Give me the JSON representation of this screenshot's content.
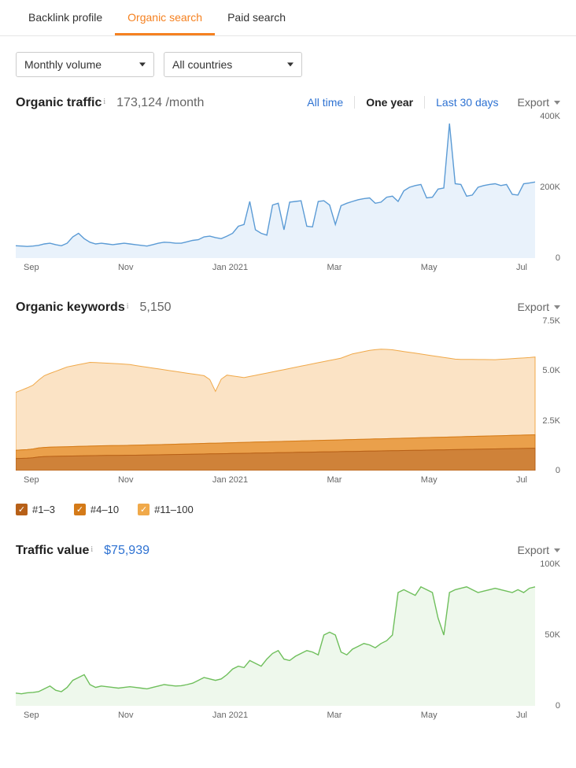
{
  "tabs": [
    {
      "label": "Backlink profile",
      "active": false
    },
    {
      "label": "Organic search",
      "active": true
    },
    {
      "label": "Paid search",
      "active": false
    }
  ],
  "selectors": {
    "volume": "Monthly volume",
    "country": "All countries"
  },
  "range": {
    "all": "All time",
    "year": "One year",
    "month": "Last 30 days",
    "active": "year"
  },
  "export_label": "Export",
  "x_ticks": [
    "Sep",
    "Nov",
    "Jan 2021",
    "Mar",
    "May",
    "Jul"
  ],
  "traffic_panel": {
    "title": "Organic traffic",
    "value": "173,124",
    "unit": "/month",
    "chart": {
      "type": "area-line",
      "stroke": "#5b9bd5",
      "fill": "#e9f2fb",
      "stroke_width": 1.4,
      "ylim": [
        0,
        400000
      ],
      "y_ticks": [
        {
          "v": 0,
          "label": "0"
        },
        {
          "v": 200000,
          "label": "200K"
        },
        {
          "v": 400000,
          "label": "400K"
        }
      ],
      "values": [
        35000,
        34000,
        33000,
        34000,
        36000,
        40000,
        42000,
        38000,
        35000,
        42000,
        60000,
        70000,
        55000,
        45000,
        40000,
        42000,
        40000,
        38000,
        40000,
        42000,
        40000,
        38000,
        36000,
        34000,
        38000,
        42000,
        45000,
        44000,
        42000,
        42000,
        46000,
        50000,
        52000,
        60000,
        62000,
        58000,
        55000,
        62000,
        70000,
        90000,
        95000,
        160000,
        80000,
        70000,
        65000,
        150000,
        155000,
        80000,
        158000,
        160000,
        162000,
        90000,
        88000,
        160000,
        162000,
        150000,
        95000,
        148000,
        155000,
        160000,
        165000,
        168000,
        170000,
        155000,
        158000,
        172000,
        175000,
        160000,
        190000,
        200000,
        205000,
        208000,
        170000,
        172000,
        195000,
        198000,
        380000,
        210000,
        208000,
        175000,
        178000,
        200000,
        205000,
        208000,
        210000,
        205000,
        208000,
        180000,
        178000,
        210000,
        212000,
        215000
      ]
    }
  },
  "keywords_panel": {
    "title": "Organic keywords",
    "value": "5,150",
    "chart": {
      "type": "stacked-area",
      "ylim": [
        0,
        7500
      ],
      "y_ticks": [
        {
          "v": 0,
          "label": "0"
        },
        {
          "v": 2500,
          "label": "2.5K"
        },
        {
          "v": 5000,
          "label": "5.0K"
        },
        {
          "v": 7500,
          "label": "7.5K"
        }
      ],
      "series": [
        {
          "label": "#1–3",
          "stroke": "#b76018",
          "fill": "#cf8239",
          "values": [
            600,
            610,
            620,
            640,
            680,
            700,
            710,
            715,
            720,
            725,
            730,
            735,
            740,
            745,
            750,
            755,
            758,
            760,
            762,
            765,
            768,
            770,
            775,
            780,
            785,
            790,
            795,
            800,
            805,
            810,
            815,
            820,
            825,
            830,
            835,
            840,
            845,
            850,
            855,
            860,
            865,
            870,
            875,
            880,
            885,
            890,
            895,
            900,
            905,
            910,
            915,
            920,
            925,
            930,
            935,
            940,
            945,
            950,
            955,
            960,
            965,
            970,
            975,
            980,
            985,
            990,
            995,
            1000,
            1005,
            1010,
            1015,
            1020,
            1025,
            1030,
            1035,
            1040,
            1045,
            1050,
            1055,
            1060,
            1065,
            1070,
            1075,
            1080,
            1085,
            1090,
            1095,
            1100,
            1105,
            1110,
            1115,
            1120
          ]
        },
        {
          "label": "#4–10",
          "stroke": "#d47a18",
          "fill": "#eaa04b",
          "values": [
            420,
            425,
            430,
            440,
            455,
            460,
            465,
            468,
            470,
            472,
            475,
            478,
            480,
            483,
            485,
            488,
            490,
            492,
            494,
            496,
            498,
            500,
            503,
            505,
            508,
            510,
            512,
            515,
            517,
            520,
            523,
            525,
            527,
            530,
            533,
            535,
            537,
            540,
            543,
            545,
            547,
            550,
            553,
            555,
            557,
            560,
            563,
            565,
            567,
            570,
            573,
            575,
            577,
            580,
            583,
            585,
            587,
            590,
            593,
            595,
            597,
            600,
            603,
            605,
            607,
            610,
            613,
            615,
            617,
            620,
            623,
            625,
            627,
            630,
            633,
            635,
            637,
            640,
            643,
            645,
            647,
            650,
            653,
            655,
            657,
            660,
            663,
            665,
            667,
            670,
            673,
            675
          ]
        },
        {
          "label": "#11–100",
          "stroke": "#f0a94a",
          "fill": "#fbe3c5",
          "values": [
            2900,
            3000,
            3100,
            3200,
            3400,
            3600,
            3700,
            3800,
            3900,
            4000,
            4050,
            4100,
            4150,
            4200,
            4180,
            4160,
            4140,
            4120,
            4100,
            4080,
            4050,
            4000,
            3950,
            3900,
            3850,
            3800,
            3750,
            3700,
            3650,
            3600,
            3550,
            3500,
            3450,
            3400,
            3200,
            2600,
            3200,
            3400,
            3350,
            3300,
            3250,
            3300,
            3350,
            3400,
            3450,
            3500,
            3550,
            3600,
            3650,
            3700,
            3750,
            3800,
            3850,
            3900,
            3950,
            4000,
            4050,
            4100,
            4200,
            4300,
            4350,
            4400,
            4450,
            4480,
            4500,
            4480,
            4450,
            4400,
            4350,
            4300,
            4250,
            4200,
            4150,
            4100,
            4050,
            4000,
            3950,
            3900,
            3880,
            3870,
            3860,
            3850,
            3840,
            3830,
            3820,
            3830,
            3840,
            3850,
            3860,
            3870,
            3880,
            3900
          ]
        }
      ]
    }
  },
  "value_panel": {
    "title": "Traffic value",
    "value": "$75,939",
    "chart": {
      "type": "area-line",
      "stroke": "#6fbf5c",
      "fill": "#eef8ec",
      "stroke_width": 1.4,
      "ylim": [
        0,
        100000
      ],
      "y_ticks": [
        {
          "v": 0,
          "label": "0"
        },
        {
          "v": 50000,
          "label": "50K"
        },
        {
          "v": 100000,
          "label": "100K"
        }
      ],
      "values": [
        9000,
        8500,
        9200,
        9500,
        10000,
        12000,
        14000,
        11000,
        10000,
        13000,
        18000,
        20000,
        22000,
        15000,
        13000,
        14000,
        13500,
        13000,
        12500,
        13000,
        13500,
        13000,
        12500,
        12000,
        13000,
        14000,
        15000,
        14500,
        14000,
        14200,
        15000,
        16000,
        18000,
        20000,
        19000,
        18000,
        19000,
        22000,
        26000,
        28000,
        27000,
        32000,
        30000,
        28000,
        33000,
        37000,
        39000,
        33000,
        32000,
        35000,
        37000,
        39000,
        38000,
        36000,
        50000,
        52000,
        50000,
        38000,
        36000,
        40000,
        42000,
        44000,
        43000,
        41000,
        44000,
        46000,
        50000,
        80000,
        82000,
        80000,
        78000,
        84000,
        82000,
        80000,
        62000,
        50000,
        80000,
        82000,
        83000,
        84000,
        82000,
        80000,
        81000,
        82000,
        83000,
        82000,
        81000,
        80000,
        82000,
        80000,
        83000,
        84000
      ]
    }
  }
}
